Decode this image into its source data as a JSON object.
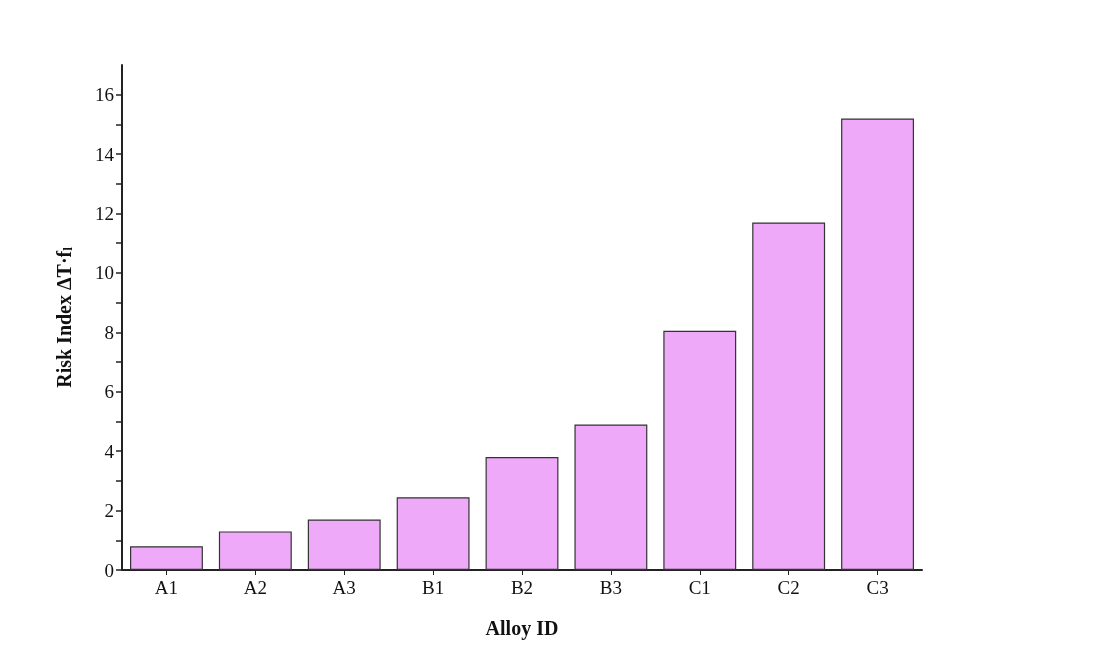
{
  "chart_data": {
    "type": "bar",
    "xlabel": "Alloy ID",
    "ylabel": "Risk Index ΔT·f$_{l}$",
    "categories": [
      "A1",
      "A2",
      "A3",
      "B1",
      "B2",
      "B3",
      "C1",
      "C2",
      "C3"
    ],
    "values": [
      0.8,
      1.3,
      1.7,
      2.45,
      3.8,
      4.9,
      8.05,
      11.7,
      15.2
    ],
    "color": "#eeaaf8",
    "ylim": [
      0,
      17
    ],
    "yticks": [
      0,
      {
        "value": 1,
        "label": null
      },
      2,
      {
        "value": 3,
        "label": null
      },
      4,
      {
        "value": 5,
        "label": null
      },
      6,
      {
        "value": 7,
        "label": null
      },
      8,
      {
        "value": 9,
        "label": null
      },
      10,
      {
        "value": 11,
        "label": null
      },
      12,
      {
        "value": 13,
        "label": null
      },
      14,
      {
        "value": 15,
        "label": null
      },
      16
    ],
    "grid": false
  }
}
